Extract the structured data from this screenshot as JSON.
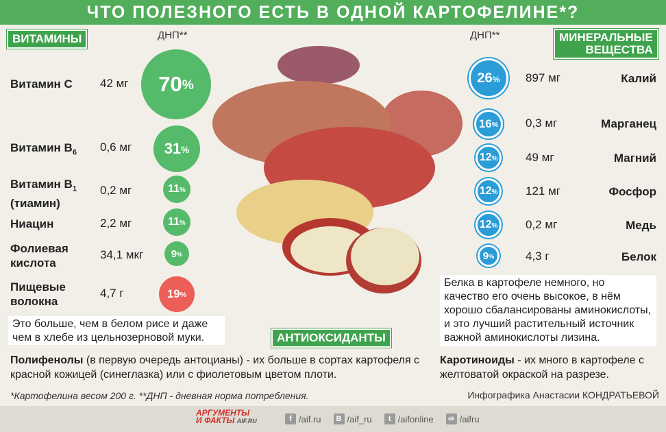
{
  "title": "ЧТО ПОЛЕЗНОГО ЕСТЬ В ОДНОЙ КАРТОФЕЛИНЕ*?",
  "vitamins": {
    "tag": "ВИТАМИНЫ",
    "dnp_label": "ДНП**",
    "items": [
      {
        "name": "Витамин С",
        "amount": "42 мг",
        "pct": "70",
        "color": "#55ba6a"
      },
      {
        "name": "Витамин В",
        "sub": "6",
        "amount": "0,6 мг",
        "pct": "31",
        "color": "#55ba6a"
      },
      {
        "name": "Витамин В",
        "sub": "1",
        "name2": "(тиамин)",
        "amount": "0,2 мг",
        "pct": "11",
        "color": "#55ba6a"
      },
      {
        "name": "Ниацин",
        "amount": "2,2 мг",
        "pct": "11",
        "color": "#55ba6a"
      },
      {
        "name": "Фолиевая",
        "name2": "кислота",
        "amount": "34,1 мкг",
        "pct": "9",
        "color": "#55ba6a"
      },
      {
        "name": "Пищевые",
        "name2": "волокна",
        "amount": "4,7 г",
        "pct": "19",
        "color": "#ec5e58"
      }
    ],
    "note": "Это больше, чем в белом рисе и даже чем в хлебе из цельнозерновой муки."
  },
  "minerals": {
    "tag_line1": "МИНЕРАЛЬНЫЕ",
    "tag_line2": "ВЕЩЕСТВА",
    "dnp_label": "ДНП**",
    "items": [
      {
        "name": "Калий",
        "amount": "897 мг",
        "pct": "26"
      },
      {
        "name": "Марганец",
        "amount": "0,3 мг",
        "pct": "16"
      },
      {
        "name": "Магний",
        "amount": "49 мг",
        "pct": "12"
      },
      {
        "name": "Фосфор",
        "amount": "121 мг",
        "pct": "12"
      },
      {
        "name": "Медь",
        "amount": "0,2 мг",
        "pct": "12"
      },
      {
        "name": "Белок",
        "amount": "4,3 г",
        "pct": "9"
      }
    ],
    "note": "Белка в картофеле немного, но качество его очень высокое, в нём хорошо сбалансированы аминокислоты, и это лучший растительный источник важной аминокислоты лизина."
  },
  "antioxidants": {
    "tag": "АНТИОКСИДАНТЫ",
    "polyphenols_bold": "Полифенолы",
    "polyphenols_text": " (в первую очередь антоцианы) - их больше в сортах картофеля с красной кожицей (синеглазка) или с фиолетовым цветом плоти.",
    "carotenoids_bold": "Каротиноиды",
    "carotenoids_text": " - их много в картофеле с желтоватой окраской на разрезе."
  },
  "footnote": "*Картофелина весом 200 г.  **ДНП - дневная норма потребления.",
  "credit": "Инфографика Анастасии КОНДРАТЬЕВОЙ",
  "logo": {
    "line1": "АРГУМЕНТЫ",
    "line2": "И ФАКТЫ",
    "domain": "AIF.RU"
  },
  "social": [
    {
      "icon": "facebook-icon",
      "glyph": "f",
      "label": "/aif.ru"
    },
    {
      "icon": "vk-icon",
      "glyph": "В",
      "label": "/aif_ru"
    },
    {
      "icon": "twitter-icon",
      "glyph": "t",
      "label": "/aifonline"
    },
    {
      "icon": "odnoklassniki-icon",
      "glyph": "ok",
      "label": "/aifru"
    }
  ]
}
